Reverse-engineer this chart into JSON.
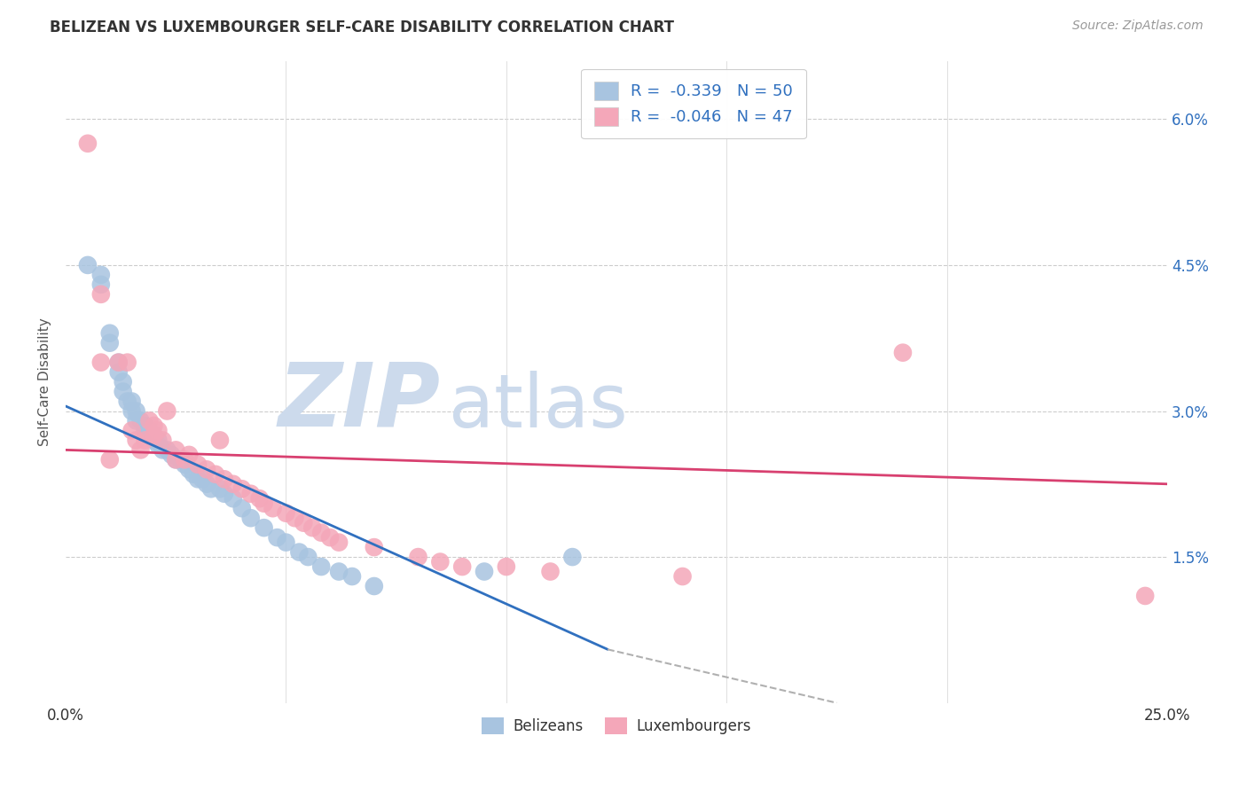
{
  "title": "BELIZEAN VS LUXEMBOURGER SELF-CARE DISABILITY CORRELATION CHART",
  "source": "Source: ZipAtlas.com",
  "ylabel": "Self-Care Disability",
  "xlim": [
    0.0,
    25.0
  ],
  "ylim_bottom": 0.0,
  "ylim_top": 6.6,
  "yticks": [
    1.5,
    3.0,
    4.5,
    6.0
  ],
  "ytick_labels_right": [
    "1.5%",
    "3.0%",
    "4.5%",
    "6.0%"
  ],
  "xticks": [
    0.0,
    5.0,
    10.0,
    15.0,
    20.0,
    25.0
  ],
  "xtick_labels": [
    "0.0%",
    "",
    "",
    "",
    "",
    "25.0%"
  ],
  "belizean_color": "#a8c4e0",
  "luxembourger_color": "#f4a7b9",
  "trend_blue": "#3070bf",
  "trend_pink": "#d84070",
  "watermark_text": "ZIPatlas",
  "watermark_color": "#ccdaec",
  "legend_blue_label": "R =  -0.339   N = 50",
  "legend_pink_label": "R =  -0.046   N = 47",
  "legend_bottom_blue": "Belizeans",
  "legend_bottom_pink": "Luxembourgers",
  "belizean_x": [
    0.5,
    0.8,
    0.8,
    1.0,
    1.0,
    1.2,
    1.2,
    1.3,
    1.3,
    1.4,
    1.5,
    1.5,
    1.6,
    1.6,
    1.7,
    1.8,
    1.8,
    1.9,
    2.0,
    2.0,
    2.1,
    2.1,
    2.2,
    2.3,
    2.4,
    2.5,
    2.6,
    2.7,
    2.8,
    2.9,
    3.0,
    3.1,
    3.2,
    3.3,
    3.5,
    3.6,
    3.8,
    4.0,
    4.2,
    4.5,
    4.8,
    5.0,
    5.3,
    5.5,
    5.8,
    6.2,
    6.5,
    7.0,
    9.5,
    11.5
  ],
  "belizean_y": [
    4.5,
    4.4,
    4.3,
    3.8,
    3.7,
    3.5,
    3.4,
    3.3,
    3.2,
    3.1,
    3.1,
    3.0,
    3.0,
    2.9,
    2.9,
    2.85,
    2.8,
    2.8,
    2.75,
    2.7,
    2.7,
    2.65,
    2.6,
    2.6,
    2.55,
    2.5,
    2.5,
    2.45,
    2.4,
    2.35,
    2.3,
    2.3,
    2.25,
    2.2,
    2.2,
    2.15,
    2.1,
    2.0,
    1.9,
    1.8,
    1.7,
    1.65,
    1.55,
    1.5,
    1.4,
    1.35,
    1.3,
    1.2,
    1.35,
    1.5
  ],
  "luxembourger_x": [
    0.5,
    0.8,
    0.8,
    1.0,
    1.2,
    1.4,
    1.5,
    1.6,
    1.7,
    1.8,
    1.9,
    2.0,
    2.0,
    2.1,
    2.2,
    2.3,
    2.5,
    2.5,
    2.7,
    2.8,
    3.0,
    3.2,
    3.4,
    3.5,
    3.6,
    3.8,
    4.0,
    4.2,
    4.4,
    4.5,
    4.7,
    5.0,
    5.2,
    5.4,
    5.6,
    5.8,
    6.0,
    6.2,
    7.0,
    8.0,
    8.5,
    9.0,
    10.0,
    11.0,
    14.0,
    19.0,
    24.5
  ],
  "luxembourger_y": [
    5.75,
    4.2,
    3.5,
    2.5,
    3.5,
    3.5,
    2.8,
    2.7,
    2.6,
    2.7,
    2.9,
    2.85,
    2.75,
    2.8,
    2.7,
    3.0,
    2.6,
    2.5,
    2.5,
    2.55,
    2.45,
    2.4,
    2.35,
    2.7,
    2.3,
    2.25,
    2.2,
    2.15,
    2.1,
    2.05,
    2.0,
    1.95,
    1.9,
    1.85,
    1.8,
    1.75,
    1.7,
    1.65,
    1.6,
    1.5,
    1.45,
    1.4,
    1.4,
    1.35,
    1.3,
    3.6,
    1.1
  ],
  "blue_trend_x0": 0.0,
  "blue_trend_y0": 3.05,
  "blue_trend_x1": 12.3,
  "blue_trend_y1": 0.55,
  "pink_trend_x0": 0.0,
  "pink_trend_y0": 2.6,
  "pink_trend_x1": 25.0,
  "pink_trend_y1": 2.25,
  "gray_dash_x0": 12.3,
  "gray_dash_y0": 0.55,
  "gray_dash_x1": 17.5,
  "gray_dash_y1": 0.0
}
